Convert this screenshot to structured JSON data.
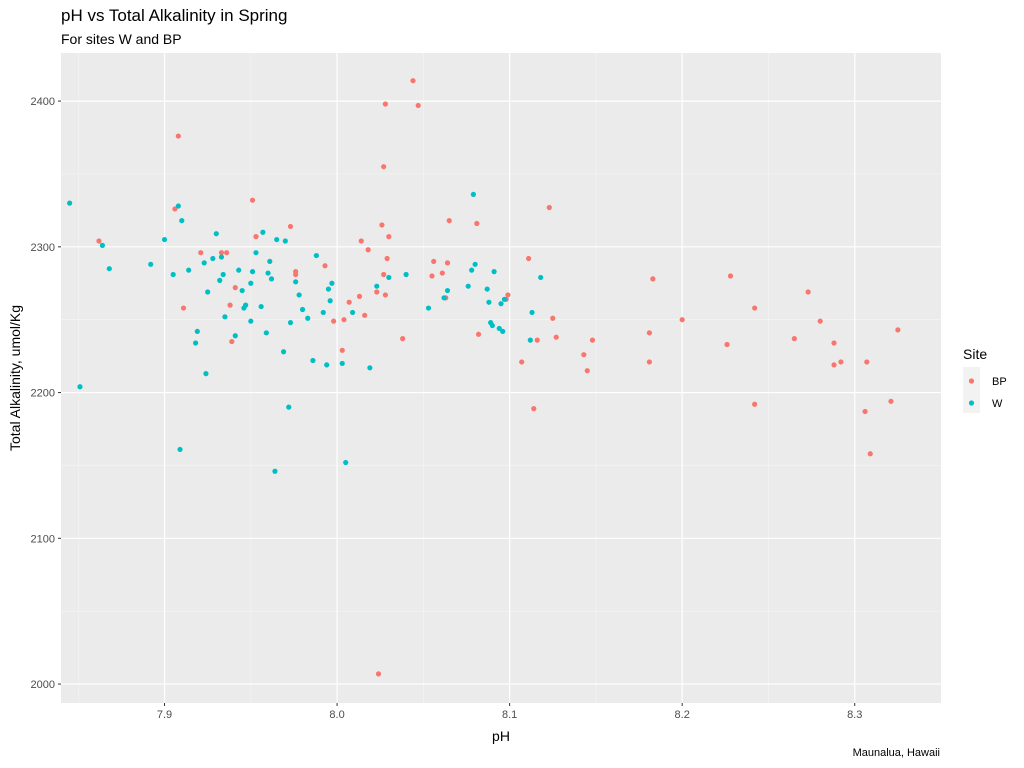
{
  "chart_data": {
    "type": "scatter",
    "title": "pH vs Total Alkalinity in Spring",
    "subtitle": "For sites W and BP",
    "caption": "Maunalua, Hawaii",
    "xlabel": "pH",
    "ylabel": "Total Alkalinity, umol/Kg",
    "xlim": [
      7.84,
      8.35
    ],
    "ylim": [
      1987,
      2433
    ],
    "xticks": [
      7.9,
      8.0,
      8.1,
      8.2,
      8.3
    ],
    "xtick_labels": [
      "7.9",
      "8.0",
      "8.1",
      "8.2",
      "8.3"
    ],
    "yticks": [
      2000,
      2100,
      2200,
      2300,
      2400
    ],
    "ytick_labels": [
      "2000",
      "2100",
      "2200",
      "2300",
      "2400"
    ],
    "grid": true,
    "legend": {
      "title": "Site",
      "position": "right"
    },
    "series": [
      {
        "name": "BP",
        "color": "#F8766D",
        "points": [
          [
            7.862,
            2304
          ],
          [
            7.906,
            2326
          ],
          [
            7.908,
            2376
          ],
          [
            7.911,
            2258
          ],
          [
            7.921,
            2296
          ],
          [
            7.933,
            2296
          ],
          [
            7.936,
            2296
          ],
          [
            7.938,
            2260
          ],
          [
            7.939,
            2235
          ],
          [
            7.941,
            2272
          ],
          [
            7.951,
            2332
          ],
          [
            7.953,
            2307
          ],
          [
            7.973,
            2314
          ],
          [
            7.976,
            2283
          ],
          [
            7.976,
            2281
          ],
          [
            7.993,
            2287
          ],
          [
            7.998,
            2249
          ],
          [
            8.003,
            2229
          ],
          [
            8.004,
            2250
          ],
          [
            8.007,
            2262
          ],
          [
            8.013,
            2266
          ],
          [
            8.014,
            2304
          ],
          [
            8.016,
            2253
          ],
          [
            8.018,
            2298
          ],
          [
            8.023,
            2269
          ],
          [
            8.024,
            2007
          ],
          [
            8.026,
            2315
          ],
          [
            8.027,
            2355
          ],
          [
            8.027,
            2281
          ],
          [
            8.028,
            2267
          ],
          [
            8.028,
            2398
          ],
          [
            8.029,
            2292
          ],
          [
            8.03,
            2307
          ],
          [
            8.038,
            2237
          ],
          [
            8.044,
            2414
          ],
          [
            8.047,
            2397
          ],
          [
            8.055,
            2280
          ],
          [
            8.056,
            2290
          ],
          [
            8.061,
            2282
          ],
          [
            8.063,
            2265
          ],
          [
            8.064,
            2289
          ],
          [
            8.065,
            2318
          ],
          [
            8.081,
            2316
          ],
          [
            8.082,
            2240
          ],
          [
            8.098,
            2264
          ],
          [
            8.099,
            2267
          ],
          [
            8.107,
            2221
          ],
          [
            8.111,
            2292
          ],
          [
            8.114,
            2189
          ],
          [
            8.116,
            2236
          ],
          [
            8.123,
            2327
          ],
          [
            8.125,
            2251
          ],
          [
            8.127,
            2238
          ],
          [
            8.143,
            2226
          ],
          [
            8.145,
            2215
          ],
          [
            8.148,
            2236
          ],
          [
            8.181,
            2241
          ],
          [
            8.181,
            2221
          ],
          [
            8.183,
            2278
          ],
          [
            8.2,
            2250
          ],
          [
            8.226,
            2233
          ],
          [
            8.228,
            2280
          ],
          [
            8.242,
            2258
          ],
          [
            8.242,
            2192
          ],
          [
            8.265,
            2237
          ],
          [
            8.273,
            2269
          ],
          [
            8.28,
            2249
          ],
          [
            8.288,
            2234
          ],
          [
            8.288,
            2219
          ],
          [
            8.292,
            2221
          ],
          [
            8.306,
            2187
          ],
          [
            8.307,
            2221
          ],
          [
            8.309,
            2158
          ],
          [
            8.321,
            2194
          ],
          [
            8.325,
            2243
          ]
        ]
      },
      {
        "name": "W",
        "color": "#00BFC4",
        "points": [
          [
            7.845,
            2330
          ],
          [
            7.851,
            2204
          ],
          [
            7.864,
            2301
          ],
          [
            7.868,
            2285
          ],
          [
            7.892,
            2288
          ],
          [
            7.9,
            2305
          ],
          [
            7.905,
            2281
          ],
          [
            7.908,
            2328
          ],
          [
            7.909,
            2161
          ],
          [
            7.91,
            2318
          ],
          [
            7.914,
            2284
          ],
          [
            7.918,
            2234
          ],
          [
            7.919,
            2242
          ],
          [
            7.923,
            2289
          ],
          [
            7.924,
            2213
          ],
          [
            7.925,
            2269
          ],
          [
            7.928,
            2292
          ],
          [
            7.93,
            2309
          ],
          [
            7.932,
            2277
          ],
          [
            7.933,
            2293
          ],
          [
            7.934,
            2281
          ],
          [
            7.935,
            2252
          ],
          [
            7.941,
            2239
          ],
          [
            7.943,
            2284
          ],
          [
            7.945,
            2270
          ],
          [
            7.946,
            2258
          ],
          [
            7.947,
            2260
          ],
          [
            7.95,
            2275
          ],
          [
            7.95,
            2249
          ],
          [
            7.951,
            2283
          ],
          [
            7.953,
            2296
          ],
          [
            7.956,
            2259
          ],
          [
            7.957,
            2310
          ],
          [
            7.959,
            2241
          ],
          [
            7.96,
            2282
          ],
          [
            7.961,
            2290
          ],
          [
            7.962,
            2278
          ],
          [
            7.964,
            2146
          ],
          [
            7.965,
            2305
          ],
          [
            7.969,
            2228
          ],
          [
            7.97,
            2304
          ],
          [
            7.972,
            2190
          ],
          [
            7.973,
            2248
          ],
          [
            7.976,
            2276
          ],
          [
            7.978,
            2267
          ],
          [
            7.98,
            2257
          ],
          [
            7.983,
            2251
          ],
          [
            7.986,
            2222
          ],
          [
            7.988,
            2294
          ],
          [
            7.992,
            2255
          ],
          [
            7.994,
            2219
          ],
          [
            7.995,
            2271
          ],
          [
            7.996,
            2263
          ],
          [
            7.997,
            2275
          ],
          [
            8.003,
            2220
          ],
          [
            8.005,
            2152
          ],
          [
            8.009,
            2255
          ],
          [
            8.019,
            2217
          ],
          [
            8.023,
            2273
          ],
          [
            8.03,
            2279
          ],
          [
            8.04,
            2281
          ],
          [
            8.053,
            2258
          ],
          [
            8.062,
            2265
          ],
          [
            8.064,
            2270
          ],
          [
            8.076,
            2273
          ],
          [
            8.078,
            2284
          ],
          [
            8.079,
            2336
          ],
          [
            8.08,
            2288
          ],
          [
            8.087,
            2271
          ],
          [
            8.088,
            2262
          ],
          [
            8.089,
            2248
          ],
          [
            8.09,
            2246
          ],
          [
            8.091,
            2283
          ],
          [
            8.094,
            2244
          ],
          [
            8.095,
            2261
          ],
          [
            8.096,
            2242
          ],
          [
            8.097,
            2264
          ],
          [
            8.112,
            2236
          ],
          [
            8.113,
            2255
          ],
          [
            8.118,
            2279
          ]
        ]
      }
    ]
  }
}
